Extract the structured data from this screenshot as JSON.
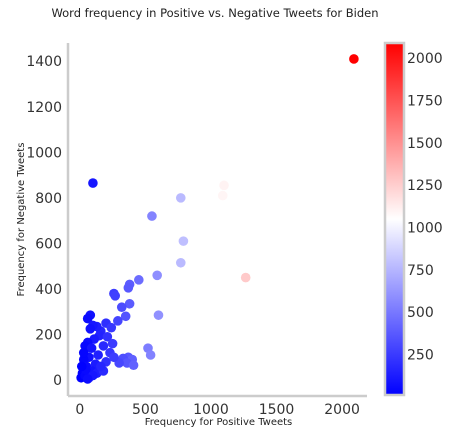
{
  "chart_data": {
    "type": "scatter",
    "title": "Word frequency in Positive vs. Negative Tweets for Biden",
    "xlabel": "Frequency for Positive Tweets",
    "ylabel": "Frequency for Negative Tweets",
    "xlim": [
      -90,
      2190
    ],
    "ylim": [
      -70,
      1480
    ],
    "xticks": [
      0,
      500,
      1000,
      1500,
      2000
    ],
    "yticks": [
      0,
      200,
      400,
      600,
      800,
      1000,
      1200,
      1400
    ],
    "grid": false,
    "colormap": "bwr",
    "color_by": "x",
    "colorbar": {
      "range": [
        10,
        2090
      ],
      "ticks": [
        250,
        500,
        750,
        1000,
        1250,
        1500,
        1750,
        2000
      ],
      "colors": [
        "#0000ff",
        "#ffffff",
        "#ff0000"
      ]
    },
    "points": [
      [
        2090,
        1410
      ],
      [
        100,
        865
      ],
      [
        1100,
        855
      ],
      [
        1090,
        810
      ],
      [
        770,
        800
      ],
      [
        550,
        720
      ],
      [
        790,
        610
      ],
      [
        770,
        515
      ],
      [
        1265,
        450
      ],
      [
        590,
        460
      ],
      [
        450,
        440
      ],
      [
        380,
        420
      ],
      [
        370,
        405
      ],
      [
        260,
        380
      ],
      [
        270,
        370
      ],
      [
        600,
        285
      ],
      [
        80,
        285
      ],
      [
        60,
        270
      ],
      [
        380,
        335
      ],
      [
        320,
        320
      ],
      [
        350,
        280
      ],
      [
        290,
        260
      ],
      [
        520,
        140
      ],
      [
        540,
        110
      ],
      [
        370,
        100
      ],
      [
        400,
        90
      ],
      [
        330,
        95
      ],
      [
        360,
        75
      ],
      [
        300,
        75
      ],
      [
        410,
        65
      ],
      [
        200,
        250
      ],
      [
        240,
        230
      ],
      [
        160,
        215
      ],
      [
        130,
        235
      ],
      [
        100,
        240
      ],
      [
        80,
        225
      ],
      [
        150,
        195
      ],
      [
        210,
        190
      ],
      [
        110,
        180
      ],
      [
        60,
        165
      ],
      [
        40,
        150
      ],
      [
        90,
        140
      ],
      [
        180,
        150
      ],
      [
        250,
        160
      ],
      [
        230,
        120
      ],
      [
        140,
        110
      ],
      [
        70,
        100
      ],
      [
        30,
        90
      ],
      [
        50,
        60
      ],
      [
        120,
        70
      ],
      [
        200,
        80
      ],
      [
        260,
        100
      ],
      [
        90,
        40
      ],
      [
        20,
        30
      ],
      [
        10,
        10
      ],
      [
        40,
        20
      ],
      [
        70,
        10
      ],
      [
        130,
        30
      ],
      [
        180,
        40
      ],
      [
        160,
        60
      ],
      [
        30,
        120
      ],
      [
        45,
        45
      ],
      [
        15,
        60
      ],
      [
        100,
        20
      ],
      [
        60,
        5
      ]
    ]
  }
}
